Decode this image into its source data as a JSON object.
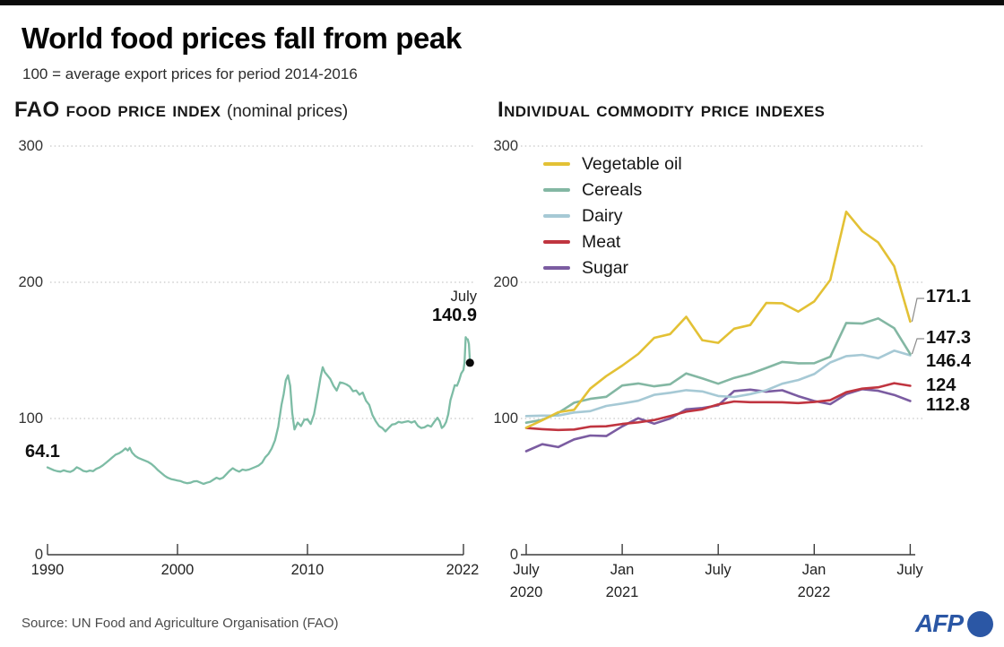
{
  "header": {
    "title": "World food prices fall from peak",
    "subtitle": "100 = average export prices for period 2014-2016"
  },
  "footer": {
    "source": "Source: UN Food and Agriculture Organisation (FAO)",
    "brand": "AFP",
    "brand_color": "#2b57a5"
  },
  "style_colors": {
    "grid": "#b8b8b8",
    "axis": "#3c3c3c",
    "dot": "#0a0a0a",
    "connector": "#8a8a8a"
  },
  "chart_data": [
    {
      "type": "line",
      "title": "FAO food price index",
      "title_note": "(nominal prices)",
      "ylim": [
        0,
        300
      ],
      "ytick_labels": [
        "300",
        "200",
        "100",
        "0"
      ],
      "x_ticks": [
        "1990",
        "2000",
        "2010",
        "2022"
      ],
      "x_range": [
        1990,
        2022.58
      ],
      "grid": "dotted horizontal lines at 100, 200, 300",
      "start_label": "64.1",
      "end_annotation": {
        "month": "July",
        "value": "140.9"
      },
      "series": [
        {
          "name": "FAO Food Price Index (nominal)",
          "color": "#7dbca5",
          "points": [
            [
              1990.0,
              64.1
            ],
            [
              1990.25,
              63.0
            ],
            [
              1990.5,
              62.0
            ],
            [
              1990.75,
              61.3
            ],
            [
              1991.0,
              61.0
            ],
            [
              1991.25,
              62.0
            ],
            [
              1991.5,
              61.2
            ],
            [
              1991.75,
              60.8
            ],
            [
              1992.0,
              62.0
            ],
            [
              1992.25,
              64.2
            ],
            [
              1992.5,
              63.0
            ],
            [
              1992.75,
              61.5
            ],
            [
              1993.0,
              61.0
            ],
            [
              1993.25,
              61.8
            ],
            [
              1993.5,
              61.3
            ],
            [
              1993.75,
              63.0
            ],
            [
              1994.0,
              64.0
            ],
            [
              1994.25,
              65.5
            ],
            [
              1994.5,
              67.5
            ],
            [
              1994.75,
              69.5
            ],
            [
              1995.0,
              71.5
            ],
            [
              1995.25,
              73.5
            ],
            [
              1995.5,
              74.5
            ],
            [
              1995.75,
              76.0
            ],
            [
              1996.0,
              78.0
            ],
            [
              1996.17,
              76.5
            ],
            [
              1996.33,
              78.5
            ],
            [
              1996.5,
              75.0
            ],
            [
              1996.75,
              72.5
            ],
            [
              1997.0,
              71.0
            ],
            [
              1997.25,
              70.0
            ],
            [
              1997.5,
              69.0
            ],
            [
              1997.75,
              68.0
            ],
            [
              1998.0,
              66.5
            ],
            [
              1998.25,
              64.5
            ],
            [
              1998.5,
              62.0
            ],
            [
              1998.75,
              60.0
            ],
            [
              1999.0,
              58.0
            ],
            [
              1999.25,
              56.5
            ],
            [
              1999.5,
              55.5
            ],
            [
              1999.75,
              55.0
            ],
            [
              2000.0,
              54.5
            ],
            [
              2000.25,
              54.0
            ],
            [
              2000.5,
              53.0
            ],
            [
              2000.75,
              52.5
            ],
            [
              2001.0,
              52.8
            ],
            [
              2001.25,
              53.8
            ],
            [
              2001.5,
              54.0
            ],
            [
              2001.75,
              53.0
            ],
            [
              2002.0,
              52.0
            ],
            [
              2002.25,
              52.8
            ],
            [
              2002.5,
              53.5
            ],
            [
              2002.75,
              55.0
            ],
            [
              2003.0,
              56.5
            ],
            [
              2003.25,
              55.5
            ],
            [
              2003.5,
              56.5
            ],
            [
              2003.75,
              59.0
            ],
            [
              2004.0,
              61.5
            ],
            [
              2004.25,
              63.5
            ],
            [
              2004.5,
              62.0
            ],
            [
              2004.75,
              61.0
            ],
            [
              2005.0,
              62.5
            ],
            [
              2005.25,
              62.0
            ],
            [
              2005.5,
              62.5
            ],
            [
              2005.75,
              63.5
            ],
            [
              2006.0,
              64.5
            ],
            [
              2006.25,
              65.5
            ],
            [
              2006.5,
              67.5
            ],
            [
              2006.75,
              71.5
            ],
            [
              2007.0,
              74.0
            ],
            [
              2007.25,
              78.0
            ],
            [
              2007.5,
              84.0
            ],
            [
              2007.75,
              94.0
            ],
            [
              2008.0,
              110.0
            ],
            [
              2008.17,
              118.0
            ],
            [
              2008.33,
              128.0
            ],
            [
              2008.5,
              131.7
            ],
            [
              2008.67,
              124.0
            ],
            [
              2008.83,
              104.0
            ],
            [
              2009.0,
              92.0
            ],
            [
              2009.25,
              97.0
            ],
            [
              2009.5,
              94.5
            ],
            [
              2009.75,
              99.0
            ],
            [
              2010.0,
              99.5
            ],
            [
              2010.25,
              96.0
            ],
            [
              2010.5,
              103.0
            ],
            [
              2010.75,
              116.0
            ],
            [
              2011.0,
              130.0
            ],
            [
              2011.17,
              137.6
            ],
            [
              2011.33,
              134.0
            ],
            [
              2011.5,
              132.0
            ],
            [
              2011.75,
              129.0
            ],
            [
              2012.0,
              124.0
            ],
            [
              2012.25,
              120.5
            ],
            [
              2012.5,
              126.5
            ],
            [
              2012.75,
              126.0
            ],
            [
              2013.0,
              125.0
            ],
            [
              2013.25,
              123.5
            ],
            [
              2013.5,
              120.0
            ],
            [
              2013.75,
              120.5
            ],
            [
              2014.0,
              117.5
            ],
            [
              2014.25,
              119.0
            ],
            [
              2014.5,
              113.0
            ],
            [
              2014.75,
              110.0
            ],
            [
              2015.0,
              102.5
            ],
            [
              2015.25,
              98.0
            ],
            [
              2015.5,
              94.5
            ],
            [
              2015.75,
              93.0
            ],
            [
              2016.0,
              90.5
            ],
            [
              2016.25,
              93.0
            ],
            [
              2016.5,
              95.5
            ],
            [
              2016.75,
              96.0
            ],
            [
              2017.0,
              97.5
            ],
            [
              2017.25,
              97.0
            ],
            [
              2017.5,
              97.5
            ],
            [
              2017.75,
              98.0
            ],
            [
              2018.0,
              97.0
            ],
            [
              2018.25,
              98.0
            ],
            [
              2018.5,
              94.5
            ],
            [
              2018.75,
              93.0
            ],
            [
              2019.0,
              93.5
            ],
            [
              2019.25,
              95.0
            ],
            [
              2019.5,
              94.0
            ],
            [
              2019.75,
              97.5
            ],
            [
              2020.0,
              100.5
            ],
            [
              2020.17,
              98.0
            ],
            [
              2020.33,
              93.0
            ],
            [
              2020.5,
              94.5
            ],
            [
              2020.67,
              97.5
            ],
            [
              2020.83,
              103.0
            ],
            [
              2021.0,
              113.5
            ],
            [
              2021.17,
              119.0
            ],
            [
              2021.33,
              124.5
            ],
            [
              2021.5,
              124.0
            ],
            [
              2021.67,
              128.0
            ],
            [
              2021.83,
              133.0
            ],
            [
              2022.0,
              135.6
            ],
            [
              2022.08,
              141.1
            ],
            [
              2022.17,
              159.7
            ],
            [
              2022.25,
              158.4
            ],
            [
              2022.33,
              158.1
            ],
            [
              2022.42,
              154.7
            ],
            [
              2022.5,
              140.9
            ]
          ]
        }
      ]
    },
    {
      "type": "line",
      "title": "Individual commodity price indexes",
      "ylim": [
        0,
        300
      ],
      "ytick_labels": [
        "300",
        "200",
        "100",
        "0"
      ],
      "x_unit": "monthly, July 2020 to July 2022",
      "x_ticks": [
        {
          "top": "July",
          "sub": "2020"
        },
        {
          "top": "Jan",
          "sub": "2021"
        },
        {
          "top": "July",
          "sub": ""
        },
        {
          "top": "Jan",
          "sub": "2022"
        },
        {
          "top": "July",
          "sub": ""
        }
      ],
      "grid": "dotted horizontal lines at 100, 200, 300",
      "legend_position": "top-left inside plot",
      "series": [
        {
          "name": "Vegetable oil",
          "color": "#e3c135",
          "end_label": "171.1",
          "values": [
            93.2,
            98.7,
            104.6,
            106.4,
            121.9,
            131.1,
            138.8,
            147.4,
            159.2,
            162.0,
            174.7,
            157.5,
            155.5,
            165.9,
            168.6,
            184.8,
            184.6,
            178.5,
            185.9,
            201.7,
            251.8,
            237.5,
            229.2,
            211.8,
            171.1
          ]
        },
        {
          "name": "Cereals",
          "color": "#83b7a3",
          "end_label": "147.3",
          "values": [
            96.9,
            99.0,
            104.0,
            111.6,
            114.4,
            115.9,
            124.2,
            125.7,
            123.6,
            125.1,
            133.1,
            129.4,
            125.5,
            129.8,
            132.8,
            137.1,
            141.5,
            140.5,
            140.6,
            145.3,
            170.1,
            169.7,
            173.5,
            166.3,
            147.3
          ]
        },
        {
          "name": "Dairy",
          "color": "#a6c9d5",
          "end_label": "146.4",
          "values": [
            101.8,
            102.1,
            102.2,
            104.4,
            105.4,
            109.2,
            111.0,
            113.0,
            117.4,
            118.9,
            120.8,
            119.9,
            116.5,
            115.8,
            117.9,
            120.7,
            125.5,
            128.2,
            132.6,
            141.1,
            145.8,
            146.7,
            144.2,
            149.8,
            146.4
          ]
        },
        {
          "name": "Meat",
          "color": "#c03540",
          "end_label": "124",
          "values": [
            93.0,
            92.2,
            91.6,
            91.9,
            94.0,
            94.3,
            96.0,
            97.2,
            98.9,
            101.8,
            105.0,
            106.7,
            110.3,
            112.5,
            112.0,
            112.0,
            111.9,
            111.3,
            112.1,
            113.4,
            119.3,
            121.9,
            122.9,
            125.9,
            124.0
          ]
        },
        {
          "name": "Sugar",
          "color": "#7b5ca1",
          "end_label": "112.8",
          "values": [
            76.0,
            81.1,
            79.0,
            84.7,
            87.5,
            87.1,
            94.2,
            100.2,
            96.2,
            100.0,
            106.7,
            107.7,
            109.6,
            120.1,
            121.2,
            119.7,
            120.7,
            116.4,
            112.8,
            110.5,
            117.9,
            121.5,
            120.3,
            117.3,
            112.8
          ]
        }
      ]
    }
  ]
}
